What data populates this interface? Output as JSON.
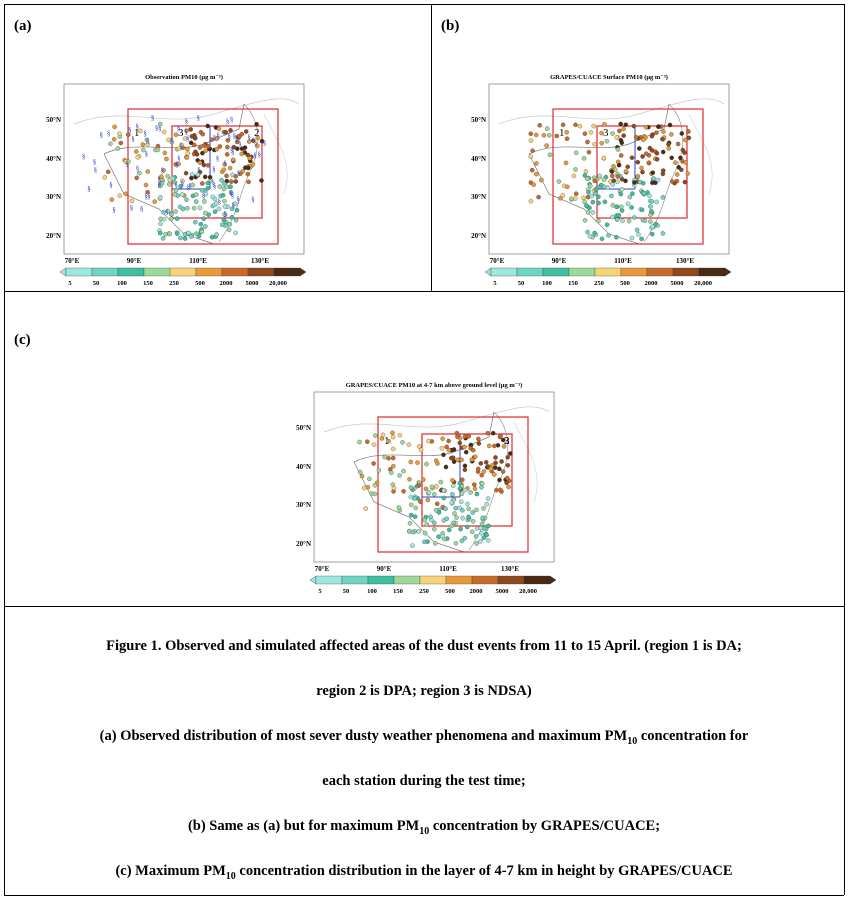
{
  "panels": [
    {
      "label": "(a)",
      "title": "Observation PM10 (μg m⁻³)",
      "has_symbols": true,
      "region_numbers": [
        "1",
        "2",
        "3"
      ]
    },
    {
      "label": "(b)",
      "title": "GRAPES/CUACE Surface PM10 (μg m⁻³)",
      "has_symbols": false,
      "region_numbers": [
        "1",
        "3"
      ]
    },
    {
      "label": "(c)",
      "title": "GRAPES/CUACE PM10 at 4-7 km above ground level (μg m⁻³)",
      "has_symbols": false,
      "region_numbers": [
        "1",
        "3",
        "2"
      ]
    }
  ],
  "axis": {
    "lat_ticks": [
      "50°N",
      "40°N",
      "30°N",
      "20°N"
    ],
    "lon_ticks": [
      "70°E",
      "90°E",
      "110°E",
      "130°E"
    ]
  },
  "colorbar": {
    "labels": [
      "5",
      "50",
      "100",
      "150",
      "250",
      "500",
      "2000",
      "5000",
      "20,000"
    ],
    "colors": [
      "#9fe6df",
      "#6fd4c4",
      "#3fbfa0",
      "#9ed89a",
      "#f6d27a",
      "#e79a3c",
      "#c86a2a",
      "#8c4a1e",
      "#4a2a12"
    ]
  },
  "caption": {
    "line1": "Figure 1. Observed and simulated affected areas of the dust events from 11 to 15 April. (region 1 is DA;",
    "line2": "region 2 is DPA; region 3 is NDSA)",
    "line3_pre": "(a) Observed distribution of most sever dusty weather phenomena and maximum PM",
    "line3_sub": "10",
    "line3_post": " concentration for",
    "line4": "each station during the test time;",
    "line5_pre": "(b) Same as (a) but for maximum PM",
    "line5_sub": "10",
    "line5_post": " concentration by GRAPES/CUACE;",
    "line6_pre": "(c) Maximum PM",
    "line6_sub": "10",
    "line6_post": " concentration distribution in the layer of 4-7 km in height by GRAPES/CUACE"
  }
}
